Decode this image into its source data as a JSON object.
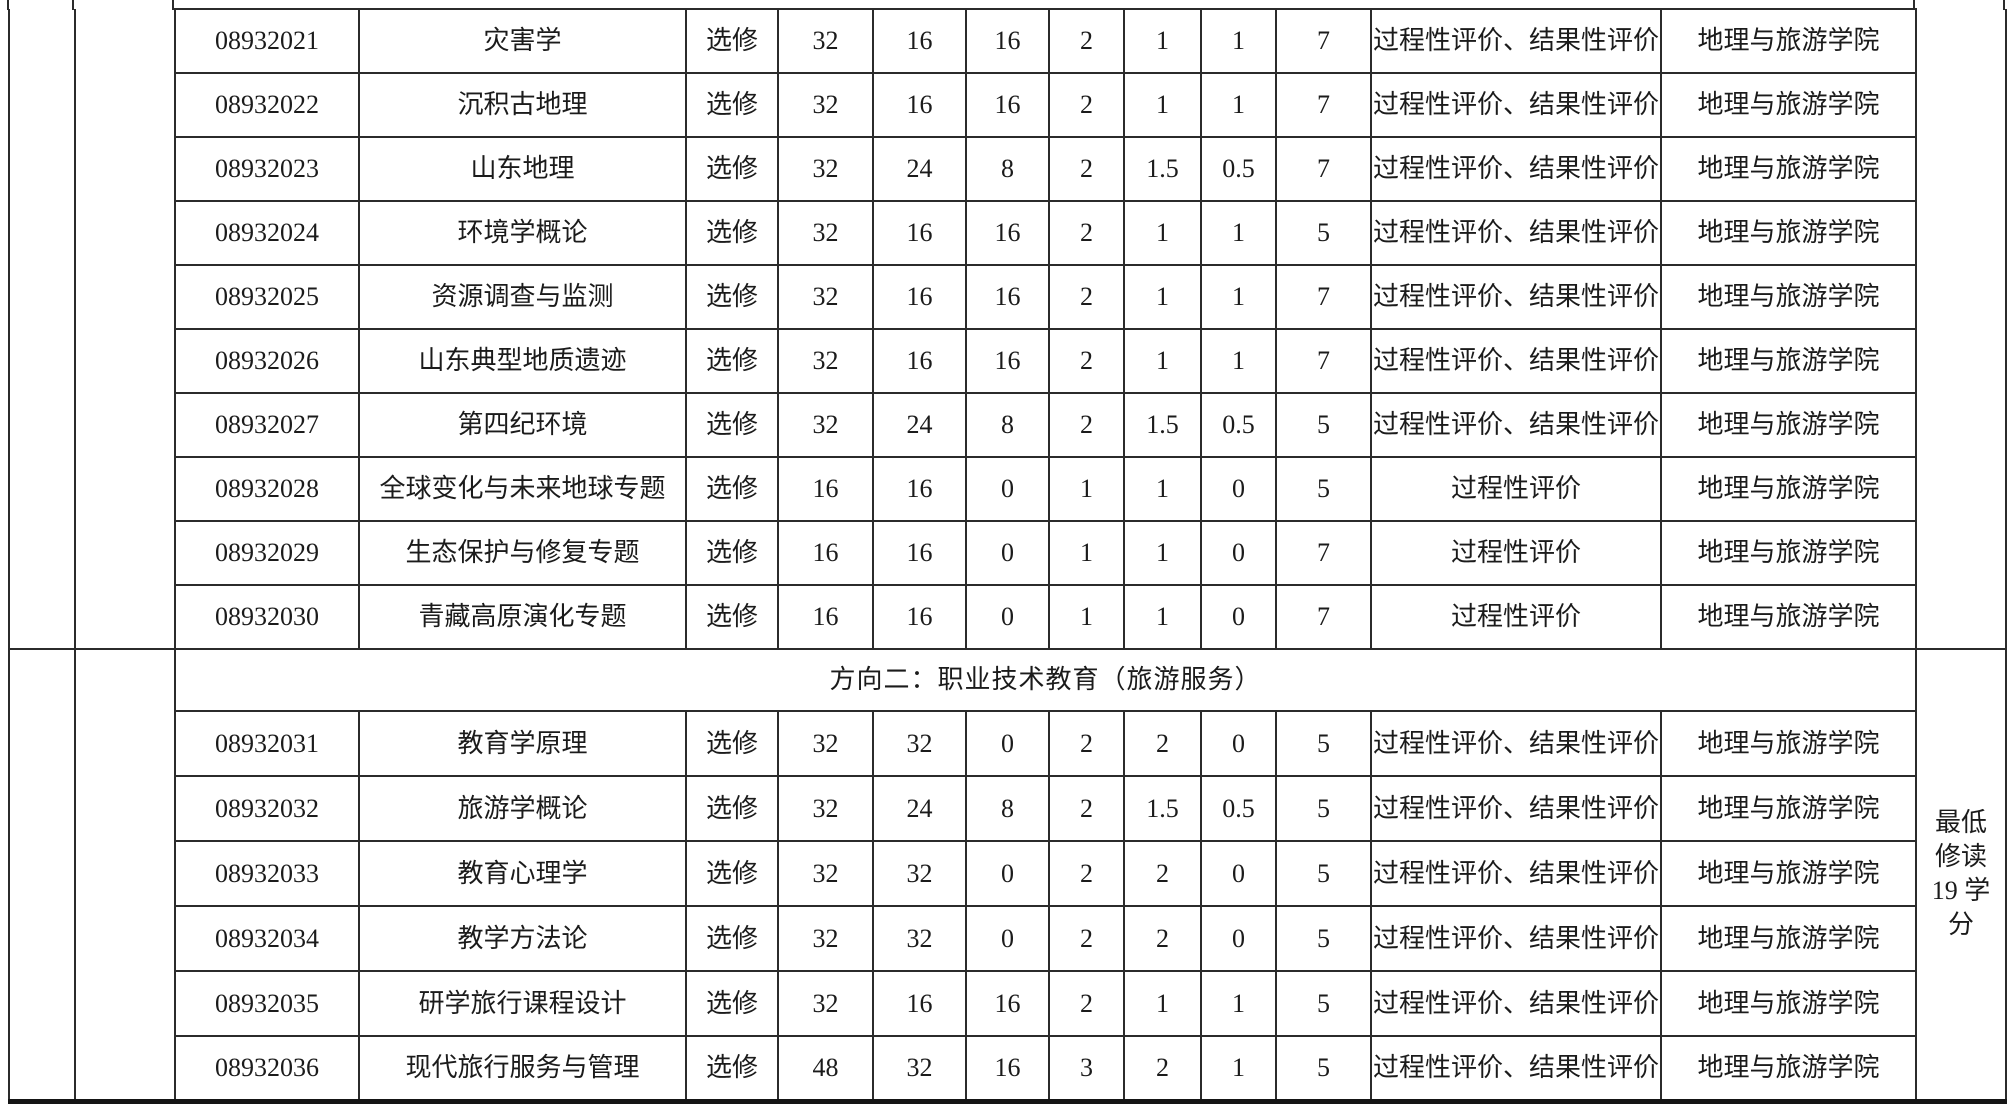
{
  "colors": {
    "border": "#2b2b2b",
    "text": "#1b1b1b",
    "background": "#ffffff"
  },
  "table": {
    "section_title": "方向二：职业技术教育（旅游服务）",
    "note_lines": [
      "最低",
      "修读",
      "19 学",
      "分"
    ],
    "rows_part1": [
      {
        "code": "08932021",
        "name": "灾害学",
        "type": "选修",
        "values": [
          "32",
          "16",
          "16",
          "2",
          "1",
          "1",
          "7"
        ],
        "assessment": "过程性评价、结果性评价",
        "department": "地理与旅游学院"
      },
      {
        "code": "08932022",
        "name": "沉积古地理",
        "type": "选修",
        "values": [
          "32",
          "16",
          "16",
          "2",
          "1",
          "1",
          "7"
        ],
        "assessment": "过程性评价、结果性评价",
        "department": "地理与旅游学院"
      },
      {
        "code": "08932023",
        "name": "山东地理",
        "type": "选修",
        "values": [
          "32",
          "24",
          "8",
          "2",
          "1.5",
          "0.5",
          "7"
        ],
        "assessment": "过程性评价、结果性评价",
        "department": "地理与旅游学院"
      },
      {
        "code": "08932024",
        "name": "环境学概论",
        "type": "选修",
        "values": [
          "32",
          "16",
          "16",
          "2",
          "1",
          "1",
          "5"
        ],
        "assessment": "过程性评价、结果性评价",
        "department": "地理与旅游学院"
      },
      {
        "code": "08932025",
        "name": "资源调查与监测",
        "type": "选修",
        "values": [
          "32",
          "16",
          "16",
          "2",
          "1",
          "1",
          "7"
        ],
        "assessment": "过程性评价、结果性评价",
        "department": "地理与旅游学院"
      },
      {
        "code": "08932026",
        "name": "山东典型地质遗迹",
        "type": "选修",
        "values": [
          "32",
          "16",
          "16",
          "2",
          "1",
          "1",
          "7"
        ],
        "assessment": "过程性评价、结果性评价",
        "department": "地理与旅游学院"
      },
      {
        "code": "08932027",
        "name": "第四纪环境",
        "type": "选修",
        "values": [
          "32",
          "24",
          "8",
          "2",
          "1.5",
          "0.5",
          "5"
        ],
        "assessment": "过程性评价、结果性评价",
        "department": "地理与旅游学院"
      },
      {
        "code": "08932028",
        "name": "全球变化与未来地球专题",
        "type": "选修",
        "values": [
          "16",
          "16",
          "0",
          "1",
          "1",
          "0",
          "5"
        ],
        "assessment": "过程性评价",
        "department": "地理与旅游学院"
      },
      {
        "code": "08932029",
        "name": "生态保护与修复专题",
        "type": "选修",
        "values": [
          "16",
          "16",
          "0",
          "1",
          "1",
          "0",
          "7"
        ],
        "assessment": "过程性评价",
        "department": "地理与旅游学院"
      },
      {
        "code": "08932030",
        "name": "青藏高原演化专题",
        "type": "选修",
        "values": [
          "16",
          "16",
          "0",
          "1",
          "1",
          "0",
          "7"
        ],
        "assessment": "过程性评价",
        "department": "地理与旅游学院"
      }
    ],
    "rows_part2": [
      {
        "code": "08932031",
        "name": "教育学原理",
        "type": "选修",
        "values": [
          "32",
          "32",
          "0",
          "2",
          "2",
          "0",
          "5"
        ],
        "assessment": "过程性评价、结果性评价",
        "department": "地理与旅游学院"
      },
      {
        "code": "08932032",
        "name": "旅游学概论",
        "type": "选修",
        "values": [
          "32",
          "24",
          "8",
          "2",
          "1.5",
          "0.5",
          "5"
        ],
        "assessment": "过程性评价、结果性评价",
        "department": "地理与旅游学院"
      },
      {
        "code": "08932033",
        "name": "教育心理学",
        "type": "选修",
        "values": [
          "32",
          "32",
          "0",
          "2",
          "2",
          "0",
          "5"
        ],
        "assessment": "过程性评价、结果性评价",
        "department": "地理与旅游学院"
      },
      {
        "code": "08932034",
        "name": "教学方法论",
        "type": "选修",
        "values": [
          "32",
          "32",
          "0",
          "2",
          "2",
          "0",
          "5"
        ],
        "assessment": "过程性评价、结果性评价",
        "department": "地理与旅游学院"
      },
      {
        "code": "08932035",
        "name": "研学旅行课程设计",
        "type": "选修",
        "values": [
          "32",
          "16",
          "16",
          "2",
          "1",
          "1",
          "5"
        ],
        "assessment": "过程性评价、结果性评价",
        "department": "地理与旅游学院"
      },
      {
        "code": "08932036",
        "name": "现代旅行服务与管理",
        "type": "选修",
        "values": [
          "48",
          "32",
          "16",
          "3",
          "2",
          "1",
          "5"
        ],
        "assessment": "过程性评价、结果性评价",
        "department": "地理与旅游学院"
      }
    ]
  }
}
